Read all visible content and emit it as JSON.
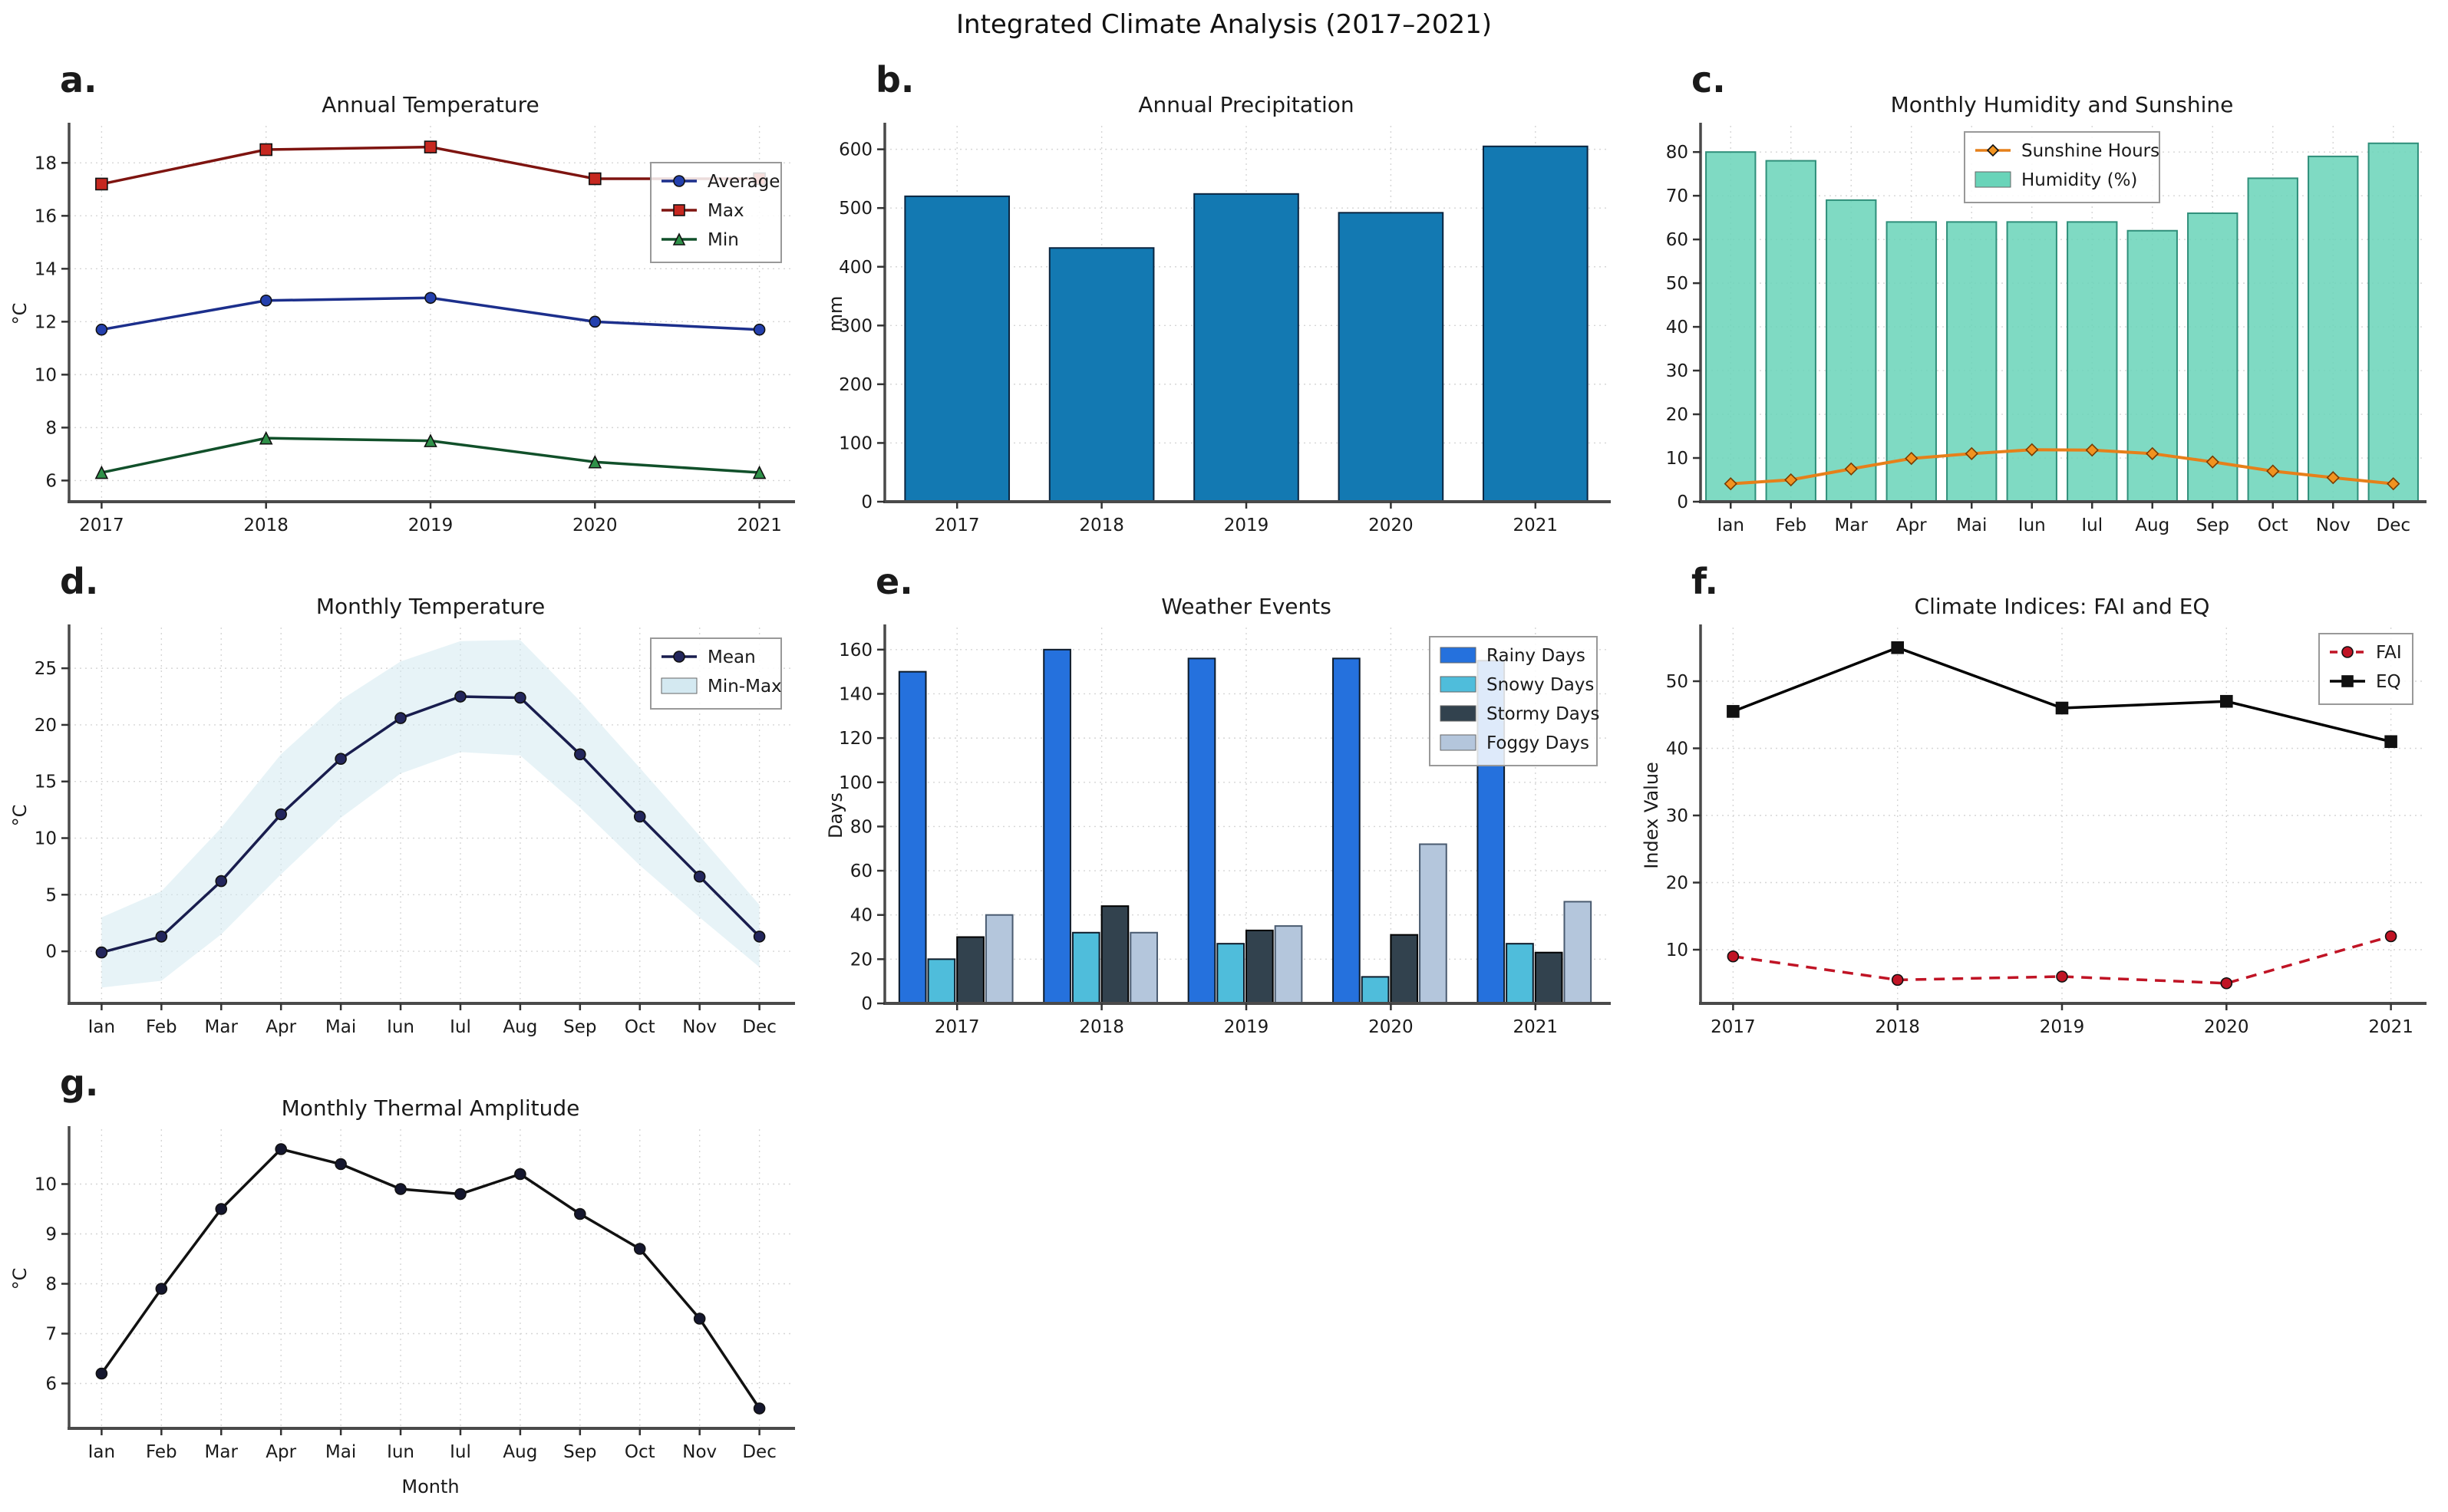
{
  "suptitle": "Integrated Climate Analysis (2017–2021)",
  "style": {
    "grid_color": "#d6d6d6",
    "spine_color": "#4a4a4a",
    "tick_color": "#333333",
    "text_color": "#1a1a1a",
    "legend_border": "#999999",
    "legend_bg_alpha": 0.85
  },
  "chart_data": [
    {
      "panel": "a.",
      "type": "line",
      "title": "Annual Temperature",
      "ylabel": "°C",
      "xlabel": "",
      "categories": [
        "2017",
        "2018",
        "2019",
        "2020",
        "2021"
      ],
      "xmode": "point",
      "ylim": [
        5.2,
        19.4
      ],
      "yticks": [
        6,
        8,
        10,
        12,
        14,
        16,
        18
      ],
      "series": [
        {
          "kind": "line",
          "name": "Average",
          "values": [
            11.7,
            12.8,
            12.9,
            12.0,
            11.7
          ],
          "line_color": "#1c2f8c",
          "marker": "circle",
          "marker_color": "#2440ae",
          "width": 3.5
        },
        {
          "kind": "line",
          "name": "Max",
          "values": [
            17.2,
            18.5,
            18.6,
            17.4,
            17.4
          ],
          "line_color": "#7e1410",
          "marker": "square",
          "marker_color": "#c62820",
          "width": 3.5
        },
        {
          "kind": "line",
          "name": "Min",
          "values": [
            6.3,
            7.6,
            7.5,
            6.7,
            6.3
          ],
          "line_color": "#11502a",
          "marker": "triangle",
          "marker_color": "#2f9149",
          "width": 3.5
        }
      ],
      "legend": {
        "pos": "tr",
        "dy": 48,
        "entries": [
          {
            "label": "Average",
            "swatch": "line",
            "line_color": "#1c2f8c",
            "marker": "circle",
            "marker_color": "#2440ae"
          },
          {
            "label": "Max",
            "swatch": "line",
            "line_color": "#7e1410",
            "marker": "square",
            "marker_color": "#c62820"
          },
          {
            "label": "Min",
            "swatch": "line",
            "line_color": "#11502a",
            "marker": "triangle",
            "marker_color": "#2f9149"
          }
        ]
      }
    },
    {
      "panel": "b.",
      "type": "bar",
      "title": "Annual Precipitation",
      "ylabel": "mm",
      "xlabel": "",
      "categories": [
        "2017",
        "2018",
        "2019",
        "2020",
        "2021"
      ],
      "xmode": "slot",
      "ylim": [
        0,
        640
      ],
      "yticks": [
        0,
        100,
        200,
        300,
        400,
        500,
        600
      ],
      "bar_group_width": 0.72,
      "series": [
        {
          "kind": "bar",
          "name": "Precipitation",
          "values": [
            520,
            432,
            524,
            492,
            605
          ],
          "fill": "#1379b2",
          "edge": "#0a2540"
        }
      ],
      "legend": null
    },
    {
      "panel": "c.",
      "type": "barline",
      "title": "Monthly Humidity and Sunshine",
      "ylabel": "",
      "xlabel": "",
      "categories": [
        "Ian",
        "Feb",
        "Mar",
        "Apr",
        "Mai",
        "Iun",
        "Iul",
        "Aug",
        "Sep",
        "Oct",
        "Nov",
        "Dec"
      ],
      "xmode": "slot",
      "ylim": [
        0,
        86
      ],
      "yticks": [
        0,
        10,
        20,
        30,
        40,
        50,
        60,
        70,
        80
      ],
      "bar_group_width": 0.82,
      "series": [
        {
          "kind": "bar",
          "name": "Humidity (%)",
          "values": [
            80,
            78,
            69,
            64,
            64,
            64,
            64,
            62,
            66,
            74,
            79,
            82
          ],
          "fill": "#69d4b9",
          "edge": "#2f8f7a",
          "opacity": 0.85
        },
        {
          "kind": "line",
          "name": "Sunshine Hours",
          "values": [
            4.1,
            5.0,
            7.5,
            9.9,
            11.0,
            11.9,
            11.8,
            11.0,
            9.1,
            7.0,
            5.5,
            4.1
          ],
          "line_color": "#e6801a",
          "marker": "diamond",
          "marker_color": "#f19320",
          "marker_edge": "#7a3c00",
          "width": 4
        }
      ],
      "legend": {
        "pos": "tc",
        "dy": 8,
        "entries": [
          {
            "label": "Sunshine Hours",
            "swatch": "line",
            "line_color": "#e6801a",
            "marker": "diamond",
            "marker_color": "#f19320"
          },
          {
            "label": "Humidity (%)",
            "swatch": "patch",
            "patch_color": "#69d4b9"
          }
        ]
      }
    },
    {
      "panel": "d.",
      "type": "line-band",
      "title": "Monthly Temperature",
      "ylabel": "°C",
      "xlabel": "",
      "categories": [
        "Ian",
        "Feb",
        "Mar",
        "Apr",
        "Mai",
        "Iun",
        "Iul",
        "Aug",
        "Sep",
        "Oct",
        "Nov",
        "Dec"
      ],
      "xmode": "point",
      "ylim": [
        -4.6,
        28.6
      ],
      "yticks": [
        0,
        5,
        10,
        15,
        20,
        25
      ],
      "series": [
        {
          "kind": "band",
          "name": "Min-Max",
          "min": [
            -3.2,
            -2.6,
            1.5,
            6.8,
            11.8,
            15.7,
            17.6,
            17.3,
            12.7,
            7.6,
            3.0,
            -1.4
          ],
          "max": [
            3.0,
            5.3,
            10.9,
            17.4,
            22.2,
            25.6,
            27.4,
            27.5,
            22.1,
            16.2,
            10.2,
            4.1
          ],
          "fill": "#d4e9f1",
          "opacity": 0.55
        },
        {
          "kind": "line",
          "name": "Mean",
          "values": [
            -0.1,
            1.3,
            6.2,
            12.1,
            17.0,
            20.6,
            22.5,
            22.4,
            17.4,
            11.9,
            6.6,
            1.3
          ],
          "line_color": "#191d4e",
          "marker": "circle",
          "marker_color": "#23265c",
          "width": 3.5
        }
      ],
      "legend": {
        "pos": "tr",
        "dy": 14,
        "entries": [
          {
            "label": "Mean",
            "swatch": "line",
            "line_color": "#191d4e",
            "marker": "circle",
            "marker_color": "#23265c"
          },
          {
            "label": "Min-Max",
            "swatch": "patch",
            "patch_color": "#d4e9f1"
          }
        ]
      }
    },
    {
      "panel": "e.",
      "type": "grouped-bar",
      "title": "Weather Events",
      "ylabel": "Days",
      "xlabel": "",
      "categories": [
        "2017",
        "2018",
        "2019",
        "2020",
        "2021"
      ],
      "xmode": "slot",
      "ylim": [
        0,
        170
      ],
      "yticks": [
        0,
        20,
        40,
        60,
        80,
        100,
        120,
        140,
        160
      ],
      "bar_group_width": 0.8,
      "series": [
        {
          "kind": "bar",
          "name": "Rainy Days",
          "values": [
            150,
            160,
            156,
            156,
            155
          ],
          "fill": "#2571dd",
          "edge": "#0d1b2a"
        },
        {
          "kind": "bar",
          "name": "Snowy Days",
          "values": [
            20,
            32,
            27,
            12,
            27
          ],
          "fill": "#4fbddb",
          "edge": "#0d1b2a"
        },
        {
          "kind": "bar",
          "name": "Stormy Days",
          "values": [
            30,
            44,
            33,
            31,
            23
          ],
          "fill": "#32424e",
          "edge": "#000000"
        },
        {
          "kind": "bar",
          "name": "Foggy Days",
          "values": [
            40,
            32,
            35,
            72,
            46
          ],
          "fill": "#b4c6dc",
          "edge": "#4a5b70"
        }
      ],
      "legend": {
        "pos": "tr",
        "dy": 12,
        "entries": [
          {
            "label": "Rainy Days",
            "swatch": "patch",
            "patch_color": "#2571dd"
          },
          {
            "label": "Snowy Days",
            "swatch": "patch",
            "patch_color": "#4fbddb"
          },
          {
            "label": "Stormy Days",
            "swatch": "patch",
            "patch_color": "#32424e"
          },
          {
            "label": "Foggy Days",
            "swatch": "patch",
            "patch_color": "#b4c6dc"
          }
        ]
      }
    },
    {
      "panel": "f.",
      "type": "line",
      "title": "Climate Indices: FAI and EQ",
      "ylabel": "Index Value",
      "xlabel": "",
      "categories": [
        "2017",
        "2018",
        "2019",
        "2020",
        "2021"
      ],
      "xmode": "point",
      "ylim": [
        2,
        58
      ],
      "yticks": [
        10,
        20,
        30,
        40,
        50
      ],
      "series": [
        {
          "kind": "line",
          "name": "FAI",
          "values": [
            9,
            5.5,
            6,
            5,
            12
          ],
          "line_color": "#c01425",
          "dash": "14 10",
          "marker": "circle",
          "marker_color": "#c01425",
          "width": 3.5
        },
        {
          "kind": "line",
          "name": "EQ",
          "values": [
            45.5,
            55,
            46,
            47,
            41
          ],
          "line_color": "#000000",
          "marker": "square",
          "marker_color": "#111111",
          "width": 3.5
        }
      ],
      "legend": {
        "pos": "tr",
        "dy": 8,
        "entries": [
          {
            "label": "FAI",
            "swatch": "line",
            "line_color": "#c01425",
            "dash": "10 7",
            "marker": "circle",
            "marker_color": "#c01425"
          },
          {
            "label": "EQ",
            "swatch": "line",
            "line_color": "#000000",
            "marker": "square",
            "marker_color": "#111111"
          }
        ]
      }
    },
    {
      "panel": "g.",
      "type": "line",
      "title": "Monthly Thermal Amplitude",
      "ylabel": "°C",
      "xlabel": "Month",
      "categories": [
        "Ian",
        "Feb",
        "Mar",
        "Apr",
        "Mai",
        "Iun",
        "Iul",
        "Aug",
        "Sep",
        "Oct",
        "Nov",
        "Dec"
      ],
      "xmode": "point",
      "ylim": [
        5.1,
        11.1
      ],
      "yticks": [
        6,
        7,
        8,
        9,
        10
      ],
      "series": [
        {
          "kind": "line",
          "name": "Amplitude",
          "values": [
            6.2,
            7.9,
            9.5,
            10.7,
            10.4,
            9.9,
            9.8,
            10.2,
            9.4,
            8.7,
            7.3,
            5.5
          ],
          "line_color": "#111111",
          "marker": "circle",
          "marker_color": "#15172e",
          "width": 3.5
        }
      ],
      "legend": null
    }
  ]
}
